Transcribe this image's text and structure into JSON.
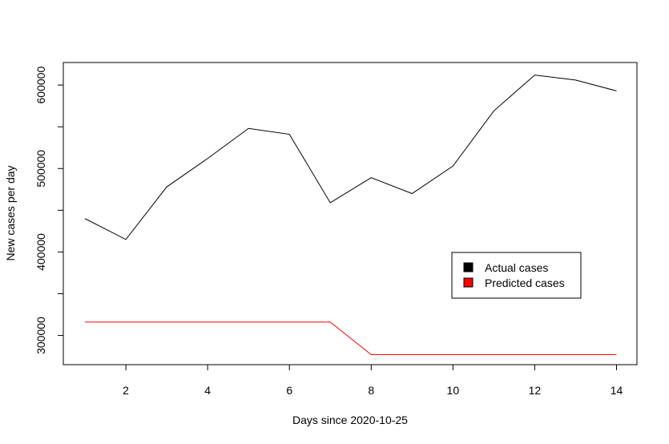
{
  "chart_data": {
    "type": "line",
    "title": "",
    "xlabel": "Days since 2020-10-25",
    "ylabel": "New cases per day",
    "xlim": [
      0.47,
      14.5
    ],
    "ylim": [
      265000,
      627000
    ],
    "x_ticks": [
      2,
      4,
      6,
      8,
      10,
      12,
      14
    ],
    "y_ticks": [
      300000,
      400000,
      500000,
      600000
    ],
    "x_tick_labels": [
      "2",
      "4",
      "6",
      "8",
      "10",
      "12",
      "14"
    ],
    "y_tick_labels": [
      "300000",
      "400000",
      "500000",
      "600000"
    ],
    "grid": false,
    "legend": {
      "position": "lower-right",
      "entries": [
        "Actual cases",
        "Predicted cases"
      ]
    },
    "x": [
      1,
      2,
      3,
      4,
      5,
      6,
      7,
      8,
      9,
      10,
      11,
      12,
      13,
      14
    ],
    "series": [
      {
        "name": "Actual cases",
        "color": "#000000",
        "values": [
          440000,
          415000,
          478000,
          512000,
          548000,
          541000,
          459000,
          489000,
          470000,
          503000,
          569000,
          612000,
          606000,
          593000
        ]
      },
      {
        "name": "Predicted cases",
        "color": "#ff0000",
        "values": [
          316000,
          316000,
          316000,
          316000,
          316000,
          316000,
          316000,
          277000,
          277000,
          277000,
          277000,
          277000,
          277000,
          277000
        ]
      }
    ]
  }
}
